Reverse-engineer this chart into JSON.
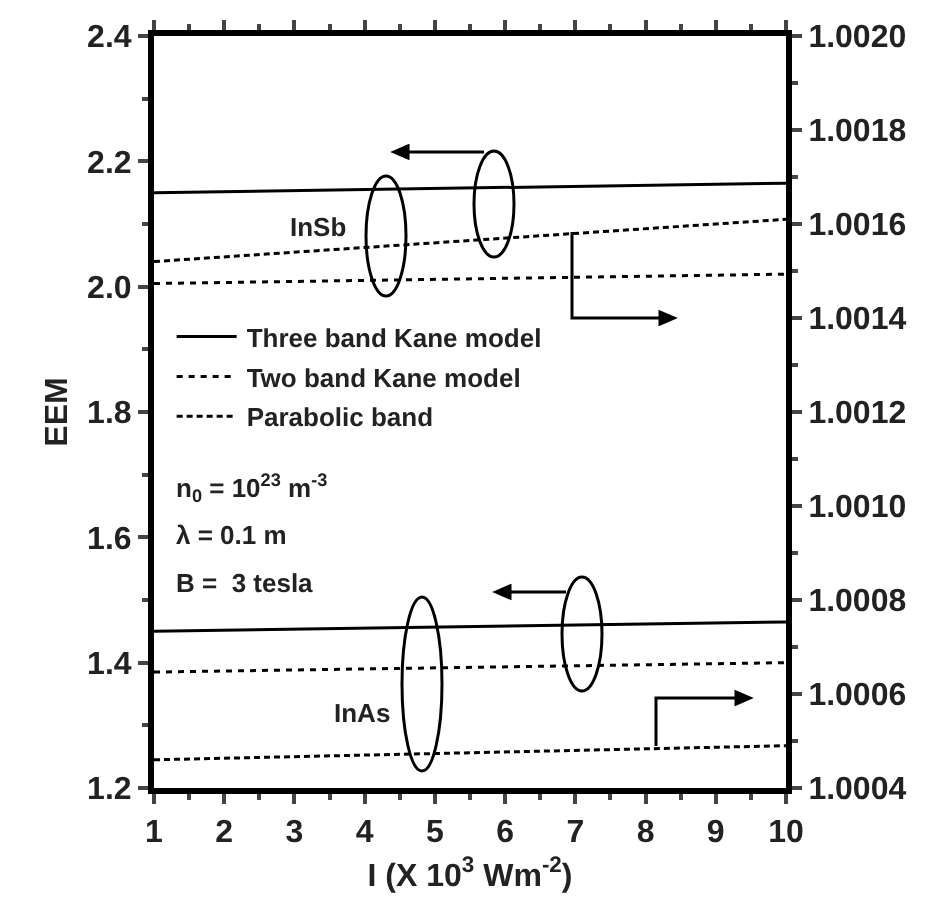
{
  "chart_data": {
    "type": "line",
    "xlabel": "I (X 10$^{3}$ Wm$^{-2}$)",
    "ylabel": "EEM",
    "x": [
      1,
      10
    ],
    "series": [
      {
        "name": "Three band Kane model",
        "color": "#000000",
        "line_style": "solid",
        "values": [
          2.15,
          2.165
        ]
      },
      {
        "name": "Two band Kane model",
        "color": "#000000",
        "line_style": "dotted",
        "values": [
          2.005,
          2.02
        ]
      },
      {
        "name": "Parabolic band",
        "color": "#000000",
        "line_style": "dashed",
        "axis": "y2",
        "values": [
          1.00152,
          1.00161
        ]
      },
      {
        "color": "#000000",
        "line_style": "solid",
        "values": [
          1.45,
          1.465
        ]
      },
      {
        "color": "#000000",
        "line_style": "dotted",
        "values": [
          1.385,
          1.4
        ]
      },
      {
        "color": "#000000",
        "line_style": "dashed",
        "axis": "y2",
        "values": [
          1.00046,
          1.00049
        ]
      }
    ],
    "xlim": [
      1,
      10
    ],
    "xticks": [
      1,
      2,
      3,
      4,
      5,
      6,
      7,
      8,
      9,
      10
    ],
    "ylim": [
      1.2,
      2.4
    ],
    "yticks": [
      {
        "value": 1.2,
        "label": "1.2"
      },
      {
        "value": 1.4,
        "label": "1.4"
      },
      {
        "value": 1.6,
        "label": "1.6"
      },
      {
        "value": 1.8,
        "label": "1.8"
      },
      {
        "value": 2.0,
        "label": "2.0"
      },
      {
        "value": 2.2,
        "label": "2.2"
      },
      {
        "value": 2.4,
        "label": "2.4"
      }
    ],
    "y2lim": [
      1.0004,
      1.002
    ],
    "y2ticks": [
      {
        "value": 1.0004,
        "label": "1.0004"
      },
      {
        "value": 1.0006,
        "label": "1.0006"
      },
      {
        "value": 1.0008,
        "label": "1.0008"
      },
      {
        "value": 1.001,
        "label": "1.0010"
      },
      {
        "value": 1.0012,
        "label": "1.0012"
      },
      {
        "value": 1.0014,
        "label": "1.0014"
      },
      {
        "value": 1.0016,
        "label": "1.0016"
      },
      {
        "value": 1.0018,
        "label": "1.0018"
      },
      {
        "value": 1.002,
        "label": "1.0020"
      }
    ],
    "annotations": [
      "InSb",
      "InAs",
      "n$_{0}$ = 10$^{23}$ m$^{-3}$",
      "λ = 0.1 m",
      "B =  3 tesla"
    ],
    "legend": "left",
    "grid": false,
    "marker": "none"
  }
}
